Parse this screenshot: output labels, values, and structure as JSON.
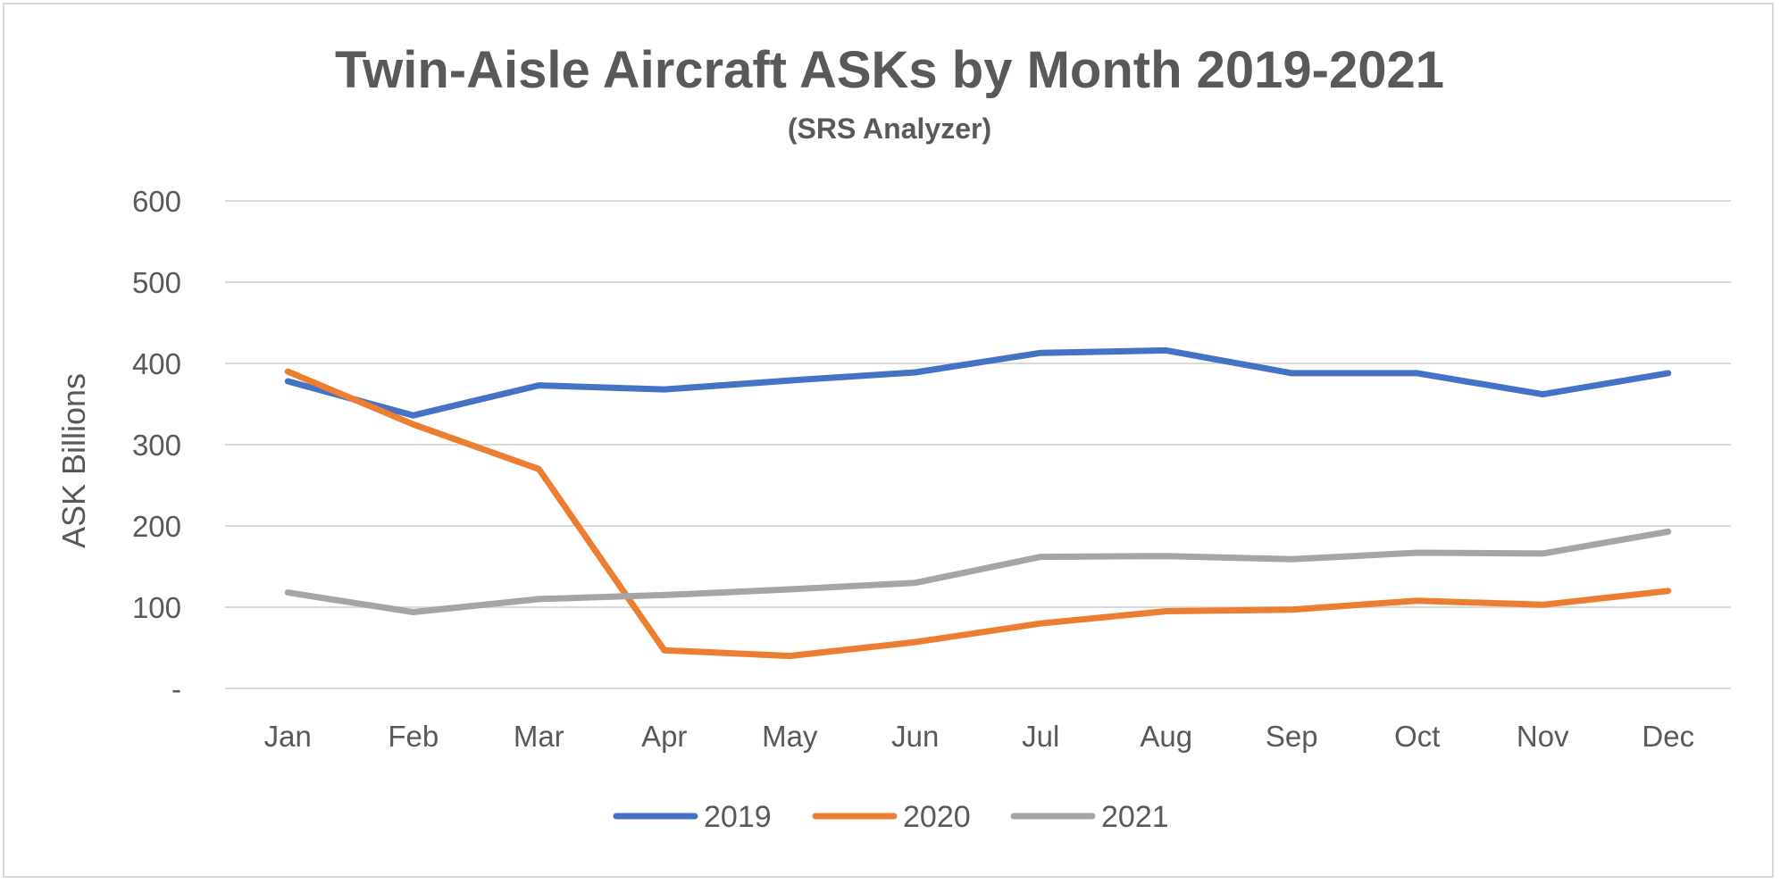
{
  "chart_data": {
    "type": "line",
    "title": "Twin-Aisle Aircraft ASKs by Month 2019-2021",
    "subtitle": "(SRS Analyzer)",
    "xlabel": "",
    "ylabel": "ASK Billions",
    "ylim": [
      0,
      600
    ],
    "yticks": [
      0,
      100,
      200,
      300,
      400,
      500,
      600
    ],
    "ytick_labels": [
      "-",
      "100",
      "200",
      "300",
      "400",
      "500",
      "600"
    ],
    "categories": [
      "Jan",
      "Feb",
      "Mar",
      "Apr",
      "May",
      "Jun",
      "Jul",
      "Aug",
      "Sep",
      "Oct",
      "Nov",
      "Dec"
    ],
    "grid": true,
    "legend_position": "bottom",
    "series": [
      {
        "name": "2019",
        "color": "#4472c4",
        "values": [
          378,
          336,
          373,
          368,
          379,
          389,
          413,
          416,
          388,
          388,
          362,
          388
        ]
      },
      {
        "name": "2020",
        "color": "#ed7d31",
        "values": [
          390,
          325,
          270,
          47,
          40,
          57,
          80,
          95,
          97,
          108,
          103,
          120
        ]
      },
      {
        "name": "2021",
        "color": "#a5a5a5",
        "values": [
          118,
          94,
          110,
          115,
          122,
          130,
          162,
          163,
          159,
          167,
          166,
          193
        ]
      }
    ]
  }
}
